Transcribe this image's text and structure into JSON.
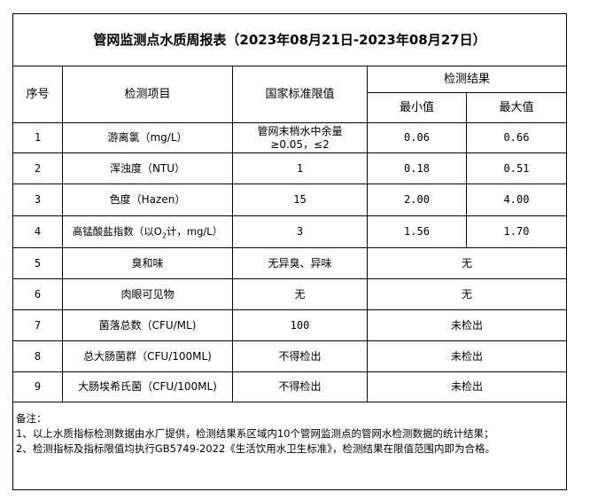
{
  "title": "管网监测点水质周报表（2023年08月21日-2023年08月27日）",
  "headers": {
    "index": "序号",
    "item": "检测项目",
    "standard": "国家标准限值",
    "result": "检测结果",
    "min": "最小值",
    "max": "最大值"
  },
  "rows": [
    {
      "index": "1",
      "item": "游离氯（mg/L）",
      "standard": "管网末梢水中余量≥0.05，≤2",
      "min": "0.06",
      "max": "0.66"
    },
    {
      "index": "2",
      "item": "浑浊度（NTU）",
      "standard": "1",
      "min": "0.18",
      "max": "0.51"
    },
    {
      "index": "3",
      "item": "色度（Hazen）",
      "standard": "15",
      "min": "2.00",
      "max": "4.00"
    },
    {
      "index": "4",
      "item_prefix": "高锰酸盐指数（以O",
      "item_sub": "2",
      "item_suffix": "计，mg/L）",
      "standard": "3",
      "min": "1.56",
      "max": "1.70"
    },
    {
      "index": "5",
      "item": "臭和味",
      "standard": "无异臭、异味",
      "result": "无"
    },
    {
      "index": "6",
      "item": "肉眼可见物",
      "standard": "无",
      "result": "无"
    },
    {
      "index": "7",
      "item": "菌落总数（CFU/ML)",
      "standard": "100",
      "result": "未检出"
    },
    {
      "index": "8",
      "item": "总大肠菌群（CFU/100ML)",
      "standard": "不得检出",
      "result": "未检出"
    },
    {
      "index": "9",
      "item": "大肠埃希氏菌（CFU/100ML)",
      "standard": "不得检出",
      "result": "未检出"
    }
  ],
  "notes": {
    "label": "备注：",
    "line1": "1、以上水质指标检测数据由水厂提供，检测结果系区域内10个管网监测点的管网水检测数据的统计结果；",
    "line2": "2、检测指标及指标限值均执行GB5749-2022《生活饮用水卫生标准》，检测结果在限值范围内即为合格。"
  }
}
